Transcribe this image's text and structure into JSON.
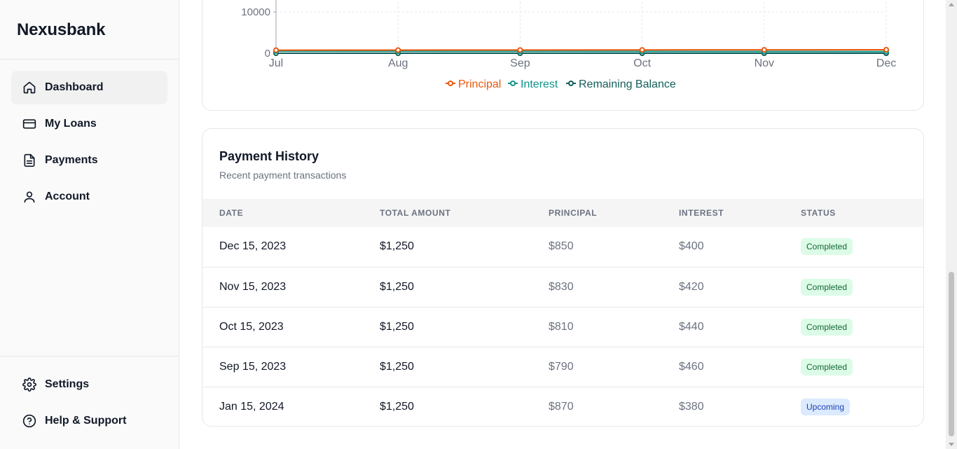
{
  "brand": "Nexusbank",
  "sidebar": {
    "items": [
      {
        "label": "Dashboard",
        "icon": "home-icon",
        "active": true
      },
      {
        "label": "My Loans",
        "icon": "credit-card-icon",
        "active": false
      },
      {
        "label": "Payments",
        "icon": "document-icon",
        "active": false
      },
      {
        "label": "Account",
        "icon": "user-icon",
        "active": false
      }
    ],
    "bottom_items": [
      {
        "label": "Settings",
        "icon": "gear-icon"
      },
      {
        "label": "Help & Support",
        "icon": "help-circle-icon"
      }
    ]
  },
  "chart_data": {
    "type": "line",
    "x": [
      "Jul",
      "Aug",
      "Sep",
      "Oct",
      "Nov",
      "Dec"
    ],
    "y_ticks_visible": [
      "10000",
      "0"
    ],
    "series": [
      {
        "name": "Principal",
        "color": "#ea580c",
        "values": [
          750,
          770,
          790,
          810,
          830,
          850
        ]
      },
      {
        "name": "Interest",
        "color": "#0d9488",
        "values": [
          500,
          480,
          460,
          440,
          420,
          400
        ]
      },
      {
        "name": "Remaining Balance",
        "color": "#115e59",
        "values": [
          0,
          0,
          0,
          0,
          0,
          0
        ]
      }
    ],
    "legend": "bottom-center",
    "grid": true
  },
  "history": {
    "title": "Payment History",
    "subtitle": "Recent payment transactions",
    "columns": [
      "DATE",
      "TOTAL AMOUNT",
      "PRINCIPAL",
      "INTEREST",
      "STATUS"
    ],
    "rows": [
      {
        "date": "Dec 15, 2023",
        "total": "$1,250",
        "principal": "$850",
        "interest": "$400",
        "status": "Completed"
      },
      {
        "date": "Nov 15, 2023",
        "total": "$1,250",
        "principal": "$830",
        "interest": "$420",
        "status": "Completed"
      },
      {
        "date": "Oct 15, 2023",
        "total": "$1,250",
        "principal": "$810",
        "interest": "$440",
        "status": "Completed"
      },
      {
        "date": "Sep 15, 2023",
        "total": "$1,250",
        "principal": "$790",
        "interest": "$460",
        "status": "Completed"
      },
      {
        "date": "Jan 15, 2024",
        "total": "$1,250",
        "principal": "$870",
        "interest": "$380",
        "status": "Upcoming"
      }
    ]
  }
}
